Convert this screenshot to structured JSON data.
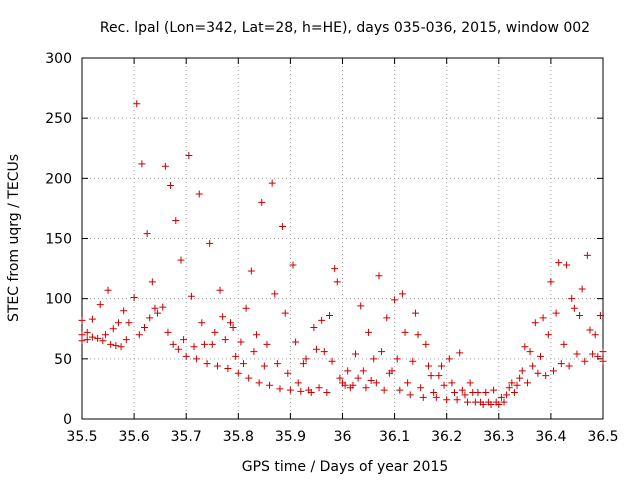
{
  "chart_data": {
    "type": "scatter",
    "title": "Rec. lpal (Lon=342, Lat=28, h=HE), days 035-036, 2015, window 002",
    "xlabel": "GPS time / Days of year 2015",
    "ylabel": "STEC from uqrg / TECUs",
    "xlim": [
      35.5,
      36.5
    ],
    "ylim": [
      0,
      300
    ],
    "xticks": [
      "35.5",
      "35.6",
      "35.7",
      "35.8",
      "35.9",
      "36",
      "36.1",
      "36.2",
      "36.3",
      "36.4",
      "36.5"
    ],
    "yticks": [
      "0",
      "50",
      "100",
      "150",
      "200",
      "250",
      "300"
    ],
    "grid": true,
    "marker": "plus",
    "color": "#cc0000",
    "points": [
      [
        35.5,
        82
      ],
      [
        35.5,
        70
      ],
      [
        35.5,
        65
      ],
      [
        35.51,
        72
      ],
      [
        35.51,
        66
      ],
      [
        35.52,
        68
      ],
      [
        35.52,
        83
      ],
      [
        35.53,
        67
      ],
      [
        35.535,
        95
      ],
      [
        35.54,
        65
      ],
      [
        35.545,
        70
      ],
      [
        35.55,
        107
      ],
      [
        35.555,
        62
      ],
      [
        35.56,
        75
      ],
      [
        35.565,
        61
      ],
      [
        35.57,
        80
      ],
      [
        35.575,
        60
      ],
      [
        35.58,
        90
      ],
      [
        35.585,
        66
      ],
      [
        35.59,
        80
      ],
      [
        35.6,
        101
      ],
      [
        35.605,
        262
      ],
      [
        35.61,
        70
      ],
      [
        35.615,
        212
      ],
      [
        35.62,
        76
      ],
      [
        35.625,
        154
      ],
      [
        35.63,
        84
      ],
      [
        35.635,
        114
      ],
      [
        35.64,
        92
      ],
      [
        35.645,
        88
      ],
      [
        35.655,
        93
      ],
      [
        35.66,
        210
      ],
      [
        35.665,
        72
      ],
      [
        35.67,
        194
      ],
      [
        35.675,
        62
      ],
      [
        35.68,
        165
      ],
      [
        35.685,
        58
      ],
      [
        35.69,
        132
      ],
      [
        35.695,
        66
      ],
      [
        35.7,
        52
      ],
      [
        35.705,
        219
      ],
      [
        35.71,
        102
      ],
      [
        35.715,
        60
      ],
      [
        35.72,
        50
      ],
      [
        35.725,
        187
      ],
      [
        35.73,
        80
      ],
      [
        35.735,
        62
      ],
      [
        35.74,
        46
      ],
      [
        35.745,
        146
      ],
      [
        35.75,
        62
      ],
      [
        35.755,
        72
      ],
      [
        35.76,
        44
      ],
      [
        35.765,
        107
      ],
      [
        35.77,
        85
      ],
      [
        35.775,
        66
      ],
      [
        35.78,
        42
      ],
      [
        35.785,
        80
      ],
      [
        35.79,
        76
      ],
      [
        35.795,
        52
      ],
      [
        35.8,
        38
      ],
      [
        35.805,
        64
      ],
      [
        35.81,
        46
      ],
      [
        35.815,
        92
      ],
      [
        35.82,
        34
      ],
      [
        35.825,
        123
      ],
      [
        35.83,
        56
      ],
      [
        35.835,
        70
      ],
      [
        35.84,
        30
      ],
      [
        35.845,
        180
      ],
      [
        35.85,
        44
      ],
      [
        35.855,
        62
      ],
      [
        35.86,
        28
      ],
      [
        35.865,
        196
      ],
      [
        35.87,
        104
      ],
      [
        35.875,
        46
      ],
      [
        35.88,
        25
      ],
      [
        35.885,
        160
      ],
      [
        35.89,
        88
      ],
      [
        35.895,
        38
      ],
      [
        35.9,
        24
      ],
      [
        35.905,
        128
      ],
      [
        35.91,
        64
      ],
      [
        35.915,
        30
      ],
      [
        35.92,
        23
      ],
      [
        35.925,
        46
      ],
      [
        35.93,
        50
      ],
      [
        35.935,
        24
      ],
      [
        35.94,
        22
      ],
      [
        35.945,
        76
      ],
      [
        35.95,
        58
      ],
      [
        35.955,
        26
      ],
      [
        35.96,
        82
      ],
      [
        35.965,
        56
      ],
      [
        35.97,
        22
      ],
      [
        35.975,
        86
      ],
      [
        35.98,
        48
      ],
      [
        35.985,
        125
      ],
      [
        35.99,
        114
      ],
      [
        35.995,
        34
      ],
      [
        36.0,
        30
      ],
      [
        36.005,
        28
      ],
      [
        36.01,
        40
      ],
      [
        36.015,
        26
      ],
      [
        36.02,
        28
      ],
      [
        36.025,
        54
      ],
      [
        36.03,
        34
      ],
      [
        36.035,
        94
      ],
      [
        36.04,
        40
      ],
      [
        36.045,
        26
      ],
      [
        36.05,
        72
      ],
      [
        36.055,
        32
      ],
      [
        36.06,
        50
      ],
      [
        36.065,
        30
      ],
      [
        36.07,
        119
      ],
      [
        36.075,
        56
      ],
      [
        36.08,
        24
      ],
      [
        36.085,
        84
      ],
      [
        36.09,
        38
      ],
      [
        36.095,
        40
      ],
      [
        36.1,
        99
      ],
      [
        36.105,
        50
      ],
      [
        36.11,
        24
      ],
      [
        36.115,
        104
      ],
      [
        36.12,
        72
      ],
      [
        36.125,
        30
      ],
      [
        36.13,
        20
      ],
      [
        36.135,
        48
      ],
      [
        36.14,
        88
      ],
      [
        36.145,
        70
      ],
      [
        36.15,
        26
      ],
      [
        36.155,
        18
      ],
      [
        36.16,
        62
      ],
      [
        36.165,
        44
      ],
      [
        36.17,
        36
      ],
      [
        36.175,
        22
      ],
      [
        36.18,
        18
      ],
      [
        36.185,
        36
      ],
      [
        36.19,
        44
      ],
      [
        36.195,
        28
      ],
      [
        36.2,
        16
      ],
      [
        36.205,
        50
      ],
      [
        36.21,
        30
      ],
      [
        36.215,
        22
      ],
      [
        36.22,
        16
      ],
      [
        36.225,
        55
      ],
      [
        36.23,
        24
      ],
      [
        36.235,
        20
      ],
      [
        36.24,
        14
      ],
      [
        36.245,
        30
      ],
      [
        36.25,
        22
      ],
      [
        36.255,
        14
      ],
      [
        36.26,
        22
      ],
      [
        36.265,
        14
      ],
      [
        36.27,
        12
      ],
      [
        36.275,
        22
      ],
      [
        36.28,
        14
      ],
      [
        36.285,
        12
      ],
      [
        36.29,
        24
      ],
      [
        36.295,
        14
      ],
      [
        36.3,
        12
      ],
      [
        36.305,
        18
      ],
      [
        36.31,
        14
      ],
      [
        36.315,
        20
      ],
      [
        36.32,
        26
      ],
      [
        36.325,
        30
      ],
      [
        36.33,
        22
      ],
      [
        36.335,
        28
      ],
      [
        36.34,
        34
      ],
      [
        36.345,
        40
      ],
      [
        36.35,
        60
      ],
      [
        36.355,
        30
      ],
      [
        36.36,
        56
      ],
      [
        36.365,
        44
      ],
      [
        36.37,
        80
      ],
      [
        36.375,
        38
      ],
      [
        36.38,
        52
      ],
      [
        36.385,
        84
      ],
      [
        36.39,
        36
      ],
      [
        36.395,
        70
      ],
      [
        36.4,
        114
      ],
      [
        36.405,
        40
      ],
      [
        36.41,
        88
      ],
      [
        36.415,
        130
      ],
      [
        36.42,
        46
      ],
      [
        36.425,
        62
      ],
      [
        36.43,
        128
      ],
      [
        36.435,
        44
      ],
      [
        36.44,
        100
      ],
      [
        36.445,
        92
      ],
      [
        36.45,
        54
      ],
      [
        36.455,
        86
      ],
      [
        36.46,
        108
      ],
      [
        36.465,
        48
      ],
      [
        36.47,
        136
      ],
      [
        36.475,
        74
      ],
      [
        36.48,
        54
      ],
      [
        36.485,
        70
      ],
      [
        36.49,
        52
      ],
      [
        36.495,
        86
      ],
      [
        36.5,
        56
      ],
      [
        36.5,
        48
      ]
    ]
  }
}
